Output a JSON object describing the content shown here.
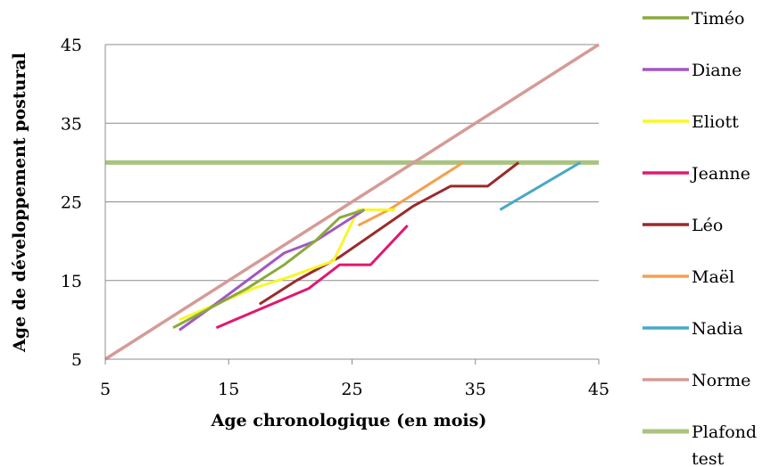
{
  "chart_data": {
    "type": "line",
    "title": "",
    "xlabel": "Age chronologique (en mois)",
    "ylabel": "Age de développement postural",
    "xlim": [
      5,
      45
    ],
    "ylim": [
      5,
      45
    ],
    "xticks": [
      5,
      15,
      25,
      35,
      45
    ],
    "yticks": [
      5,
      15,
      25,
      35,
      45
    ],
    "grid": "horizontal",
    "legend_position": "right",
    "series": [
      {
        "name": "Timéo",
        "color": "#8aaa3c",
        "points": [
          [
            10.5,
            9
          ],
          [
            13.5,
            11.5
          ],
          [
            16.5,
            14
          ],
          [
            19.5,
            17
          ],
          [
            22,
            20
          ],
          [
            24,
            23
          ],
          [
            26,
            24
          ]
        ]
      },
      {
        "name": "Diane",
        "color": "#a356c2",
        "points": [
          [
            11,
            8.7
          ],
          [
            13.5,
            11.5
          ],
          [
            16.5,
            15
          ],
          [
            19.5,
            18.5
          ],
          [
            22,
            20
          ],
          [
            26,
            24
          ]
        ]
      },
      {
        "name": "Eliott",
        "color": "#f7f72a",
        "points": [
          [
            11,
            10
          ],
          [
            14,
            12
          ],
          [
            17,
            14
          ],
          [
            20,
            15.5
          ],
          [
            23.5,
            17.5
          ],
          [
            25.5,
            24
          ],
          [
            28.5,
            24
          ]
        ]
      },
      {
        "name": "Jeanne",
        "color": "#e0186f",
        "points": [
          [
            14,
            9
          ],
          [
            21.5,
            14
          ],
          [
            24,
            17
          ],
          [
            26.5,
            17
          ],
          [
            29.5,
            22
          ]
        ]
      },
      {
        "name": "Léo",
        "color": "#9b2a2a",
        "points": [
          [
            17.5,
            12
          ],
          [
            20.5,
            15
          ],
          [
            24,
            18
          ],
          [
            30,
            24.5
          ],
          [
            33,
            27
          ],
          [
            36,
            27
          ],
          [
            38.5,
            30
          ]
        ]
      },
      {
        "name": "Maël",
        "color": "#f5a04e",
        "points": [
          [
            25.5,
            22
          ],
          [
            28,
            24
          ],
          [
            31.5,
            27.5
          ],
          [
            34,
            30
          ]
        ]
      },
      {
        "name": "Nadia",
        "color": "#49a8c6",
        "points": [
          [
            37,
            24
          ],
          [
            43.5,
            30
          ]
        ]
      },
      {
        "name": "Norme",
        "color": "#d59b96",
        "points": [
          [
            5,
            5
          ],
          [
            45,
            45
          ]
        ]
      },
      {
        "name": "Plafond test",
        "color": "#a8c480",
        "points": [
          [
            5,
            30
          ],
          [
            45,
            30
          ]
        ]
      }
    ]
  },
  "legend": {
    "items": [
      {
        "label": "Timéo"
      },
      {
        "label": "Diane"
      },
      {
        "label": "Eliott"
      },
      {
        "label": "Jeanne"
      },
      {
        "label": "Léo"
      },
      {
        "label": "Maël"
      },
      {
        "label": "Nadia"
      },
      {
        "label": "Norme"
      },
      {
        "label": "Plafond",
        "label2": "test"
      }
    ]
  }
}
